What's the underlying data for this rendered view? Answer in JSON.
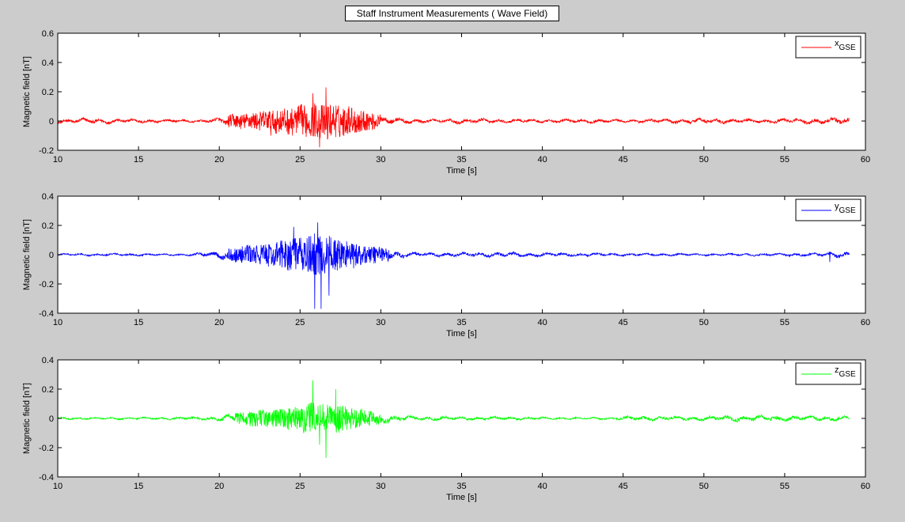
{
  "figure": {
    "title": "Staff Instrument Measurements ( Wave Field)",
    "background": "#cccccc"
  },
  "chart_data": [
    {
      "type": "line",
      "xlabel": "Time [s]",
      "ylabel": "Magnetic field [nT]",
      "xlim": [
        10,
        60
      ],
      "ylim": [
        -0.2,
        0.6
      ],
      "xticks": [
        10,
        15,
        20,
        25,
        30,
        35,
        40,
        45,
        50,
        55,
        60
      ],
      "yticks": [
        -0.2,
        0,
        0.2,
        0.4,
        0.6
      ],
      "legend_placement": "top-right",
      "grid": false,
      "series": [
        {
          "name": "x",
          "name_subscript": "GSE",
          "color": "#ff0000",
          "x_range": [
            10,
            59
          ],
          "envelope": [
            [
              10,
              0.025
            ],
            [
              12,
              0.03
            ],
            [
              14,
              0.025
            ],
            [
              16,
              0.02
            ],
            [
              18,
              0.015
            ],
            [
              19.5,
              0.02
            ],
            [
              20.5,
              0.05
            ],
            [
              22,
              0.07
            ],
            [
              24,
              0.1
            ],
            [
              25.5,
              0.13
            ],
            [
              26.5,
              0.15
            ],
            [
              27.5,
              0.13
            ],
            [
              28.5,
              0.1
            ],
            [
              30,
              0.05
            ],
            [
              31.5,
              0.03
            ],
            [
              33,
              0.02
            ],
            [
              35,
              0.03
            ],
            [
              38,
              0.02
            ],
            [
              42,
              0.02
            ],
            [
              46,
              0.02
            ],
            [
              50,
              0.03
            ],
            [
              53,
              0.02
            ],
            [
              56,
              0.03
            ],
            [
              59,
              0.04
            ]
          ],
          "peaks": [
            [
              26.6,
              0.23
            ],
            [
              26.2,
              -0.18
            ],
            [
              25.8,
              0.19
            ],
            [
              23.2,
              -0.1
            ]
          ]
        }
      ]
    },
    {
      "type": "line",
      "xlabel": "Time [s]",
      "ylabel": "Magnetic field [nT]",
      "xlim": [
        10,
        60
      ],
      "ylim": [
        -0.4,
        0.4
      ],
      "xticks": [
        10,
        15,
        20,
        25,
        30,
        35,
        40,
        45,
        50,
        55,
        60
      ],
      "yticks": [
        -0.4,
        -0.2,
        0,
        0.2,
        0.4
      ],
      "legend_placement": "top-right",
      "grid": false,
      "series": [
        {
          "name": "y",
          "name_subscript": "GSE",
          "color": "#0000ff",
          "x_range": [
            10,
            59
          ],
          "envelope": [
            [
              10,
              0.012
            ],
            [
              13,
              0.015
            ],
            [
              16,
              0.012
            ],
            [
              18,
              0.012
            ],
            [
              19.5,
              0.03
            ],
            [
              21,
              0.06
            ],
            [
              23,
              0.09
            ],
            [
              25,
              0.14
            ],
            [
              26,
              0.17
            ],
            [
              27,
              0.14
            ],
            [
              28.5,
              0.1
            ],
            [
              30,
              0.06
            ],
            [
              31.5,
              0.03
            ],
            [
              33,
              0.02
            ],
            [
              36,
              0.025
            ],
            [
              39,
              0.025
            ],
            [
              42,
              0.02
            ],
            [
              46,
              0.015
            ],
            [
              50,
              0.012
            ],
            [
              54,
              0.015
            ],
            [
              57,
              0.02
            ],
            [
              59,
              0.04
            ]
          ],
          "peaks": [
            [
              25.9,
              -0.37
            ],
            [
              26.3,
              -0.37
            ],
            [
              26.1,
              0.22
            ],
            [
              26.8,
              -0.28
            ],
            [
              24.6,
              0.19
            ],
            [
              57.8,
              -0.05
            ]
          ]
        }
      ]
    },
    {
      "type": "line",
      "xlabel": "Time [s]",
      "ylabel": "Magnetic field [nT]",
      "xlim": [
        10,
        60
      ],
      "ylim": [
        -0.4,
        0.4
      ],
      "xticks": [
        10,
        15,
        20,
        25,
        30,
        35,
        40,
        45,
        50,
        55,
        60
      ],
      "yticks": [
        -0.4,
        -0.2,
        0,
        0.2,
        0.4
      ],
      "legend_placement": "top-right",
      "grid": false,
      "series": [
        {
          "name": "z",
          "name_subscript": "GSE",
          "color": "#00ff00",
          "x_range": [
            10,
            59
          ],
          "envelope": [
            [
              10,
              0.012
            ],
            [
              14,
              0.012
            ],
            [
              17,
              0.015
            ],
            [
              19.5,
              0.02
            ],
            [
              21,
              0.05
            ],
            [
              23,
              0.07
            ],
            [
              25,
              0.1
            ],
            [
              26,
              0.13
            ],
            [
              27,
              0.12
            ],
            [
              28.5,
              0.08
            ],
            [
              30,
              0.05
            ],
            [
              32,
              0.025
            ],
            [
              36,
              0.02
            ],
            [
              40,
              0.015
            ],
            [
              44,
              0.012
            ],
            [
              46,
              0.03
            ],
            [
              48,
              0.02
            ],
            [
              50,
              0.025
            ],
            [
              52,
              0.035
            ],
            [
              55,
              0.03
            ],
            [
              59,
              0.025
            ]
          ],
          "peaks": [
            [
              25.8,
              0.26
            ],
            [
              26.6,
              -0.27
            ],
            [
              27.2,
              0.2
            ],
            [
              26.2,
              -0.18
            ]
          ]
        }
      ]
    }
  ]
}
